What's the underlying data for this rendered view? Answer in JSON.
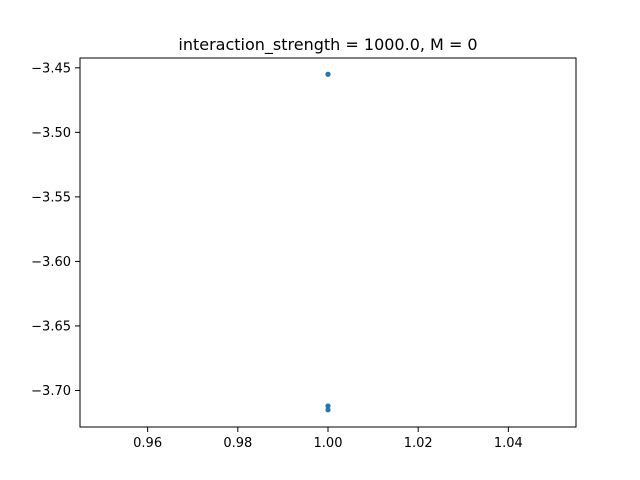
{
  "chart_data": {
    "type": "scatter",
    "title": "interaction_strength = 1000.0, M = 0",
    "xlabel": "",
    "ylabel": "",
    "xlim": [
      0.945,
      1.055
    ],
    "ylim": [
      -3.7283,
      -3.4424
    ],
    "xticks": [
      0.96,
      0.98,
      1.0,
      1.02,
      1.04
    ],
    "xtick_labels": [
      "0.96",
      "0.98",
      "1.00",
      "1.02",
      "1.04"
    ],
    "yticks": [
      -3.45,
      -3.5,
      -3.55,
      -3.6,
      -3.65,
      -3.7
    ],
    "ytick_labels": [
      "−3.45",
      "−3.50",
      "−3.55",
      "−3.60",
      "−3.65",
      "−3.70"
    ],
    "grid": false,
    "series": [
      {
        "color": "#1f77b4",
        "points": [
          {
            "x": 1.0,
            "y": -3.455
          },
          {
            "x": 1.0,
            "y": -3.712
          },
          {
            "x": 1.0,
            "y": -3.715
          }
        ]
      }
    ]
  }
}
